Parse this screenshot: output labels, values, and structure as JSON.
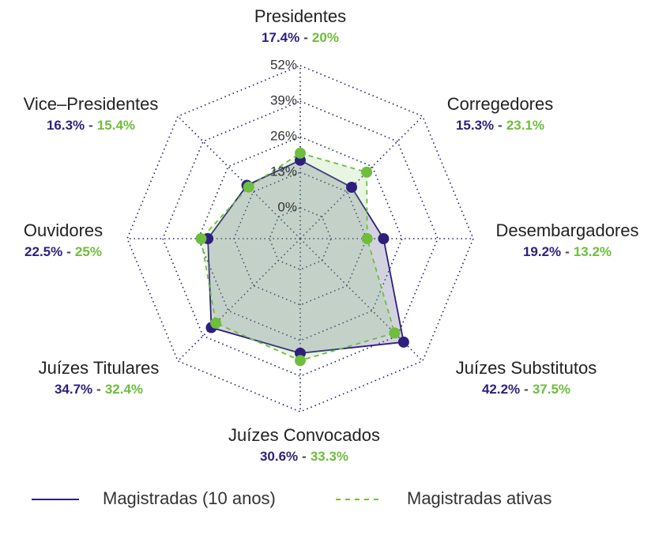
{
  "chart_data": {
    "type": "radar",
    "categories": [
      "Presidentes",
      "Corregedores",
      "Desembargadores",
      "Juízes Substitutos",
      "Juízes Convocados",
      "Juízes Titulares",
      "Ouvidores",
      "Vice–Presidentes"
    ],
    "series": [
      {
        "name": "Magistradas (10 anos)",
        "color": "#2e1f7d",
        "line_style": "solid",
        "values": [
          17.4,
          15.3,
          19.2,
          42.2,
          30.6,
          34.7,
          22.5,
          16.3
        ],
        "value_labels": [
          "17.4%",
          "15.3%",
          "19.2%",
          "42.2%",
          "30.6%",
          "34.7%",
          "22.5%",
          "16.3%"
        ]
      },
      {
        "name": "Magistradas ativas",
        "color": "#6dbe3b",
        "line_style": "dashed",
        "values": [
          20,
          23.1,
          13.2,
          37.5,
          33.3,
          32.4,
          25,
          15.4
        ],
        "value_labels": [
          "20%",
          "23.1%",
          "13.2%",
          "37.5%",
          "33.3%",
          "32.4%",
          "25%",
          "15.4%"
        ]
      }
    ],
    "value_separator": "-",
    "ylim": [
      0,
      52
    ],
    "yticks": [
      {
        "value": 0,
        "label": "0%"
      },
      {
        "value": 13,
        "label": "13%"
      },
      {
        "value": 26,
        "label": "26%"
      },
      {
        "value": 39,
        "label": "39%"
      },
      {
        "value": 52,
        "label": "52%"
      }
    ],
    "grid": true,
    "legend": "bottom"
  }
}
